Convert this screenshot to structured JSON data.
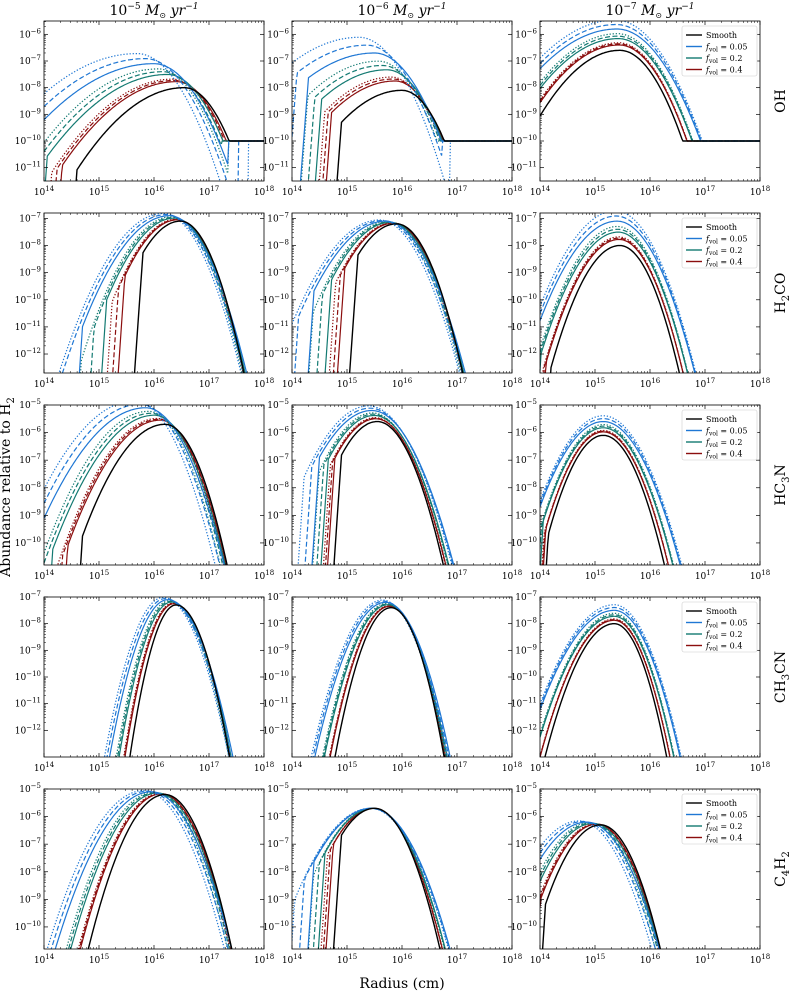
{
  "figure": {
    "ylabel": "Abundance relative to H",
    "ylabel_sub": "2",
    "xlabel": "Radius (cm)"
  },
  "columns": [
    {
      "exp": "−5",
      "suffix": "M",
      "unit": "yr",
      "unit_exp": "−1"
    },
    {
      "exp": "−6",
      "suffix": "M",
      "unit": "yr",
      "unit_exp": "−1"
    },
    {
      "exp": "−7",
      "suffix": "M",
      "unit": "yr",
      "unit_exp": "−1"
    }
  ],
  "rows": [
    {
      "species": "OH",
      "parts": [
        {
          "t": "OH",
          "sub": false
        }
      ]
    },
    {
      "species": "H2CO",
      "parts": [
        {
          "t": "H",
          "sub": false
        },
        {
          "t": "2",
          "sub": true
        },
        {
          "t": "CO",
          "sub": false
        }
      ]
    },
    {
      "species": "HC3N",
      "parts": [
        {
          "t": "HC",
          "sub": false
        },
        {
          "t": "3",
          "sub": true
        },
        {
          "t": "N",
          "sub": false
        }
      ]
    },
    {
      "species": "CH3CN",
      "parts": [
        {
          "t": "CH",
          "sub": false
        },
        {
          "t": "3",
          "sub": true
        },
        {
          "t": "CN",
          "sub": false
        }
      ]
    },
    {
      "species": "C4H2",
      "parts": [
        {
          "t": "C",
          "sub": false
        },
        {
          "t": "4",
          "sub": true
        },
        {
          "t": "H",
          "sub": false
        },
        {
          "t": "2",
          "sub": true
        }
      ]
    }
  ],
  "legend": {
    "entries": [
      {
        "label": "Smooth",
        "f": "",
        "color": "#000000"
      },
      {
        "label": "f",
        "f": "vol",
        "eq": " = 0.05",
        "color": "#1f77d4"
      },
      {
        "label": "f",
        "f": "vol",
        "eq": " = 0.2",
        "color": "#137a72"
      },
      {
        "label": "f",
        "f": "vol",
        "eq": " = 0.4",
        "color": "#8b0e0e"
      }
    ]
  },
  "colors": {
    "smooth": "#000000",
    "f005": "#1f77d4",
    "f02": "#137a72",
    "f04": "#8b0e0e"
  },
  "chart_data": {
    "type": "line",
    "xscale": "log",
    "yscale": "log",
    "xlim_exp": [
      14,
      18
    ],
    "x_tick_exponents": [
      "14",
      "15",
      "16",
      "17",
      "18"
    ],
    "panels": [
      {
        "row": "OH",
        "col": "−5",
        "ylim_exp": [
          -11.5,
          -5.5
        ],
        "y_ticks": [
          "−11",
          "−10",
          "−9",
          "−8",
          "−7",
          "−6"
        ],
        "smooth": {
          "lr": 14.6,
          "rise": 0.9,
          "pr": 16.55,
          "pv": -8.0,
          "fall": 3.0,
          "fr": 16.8,
          "tail": -10.0
        },
        "spread": 0.9,
        "peakshift": 0.55,
        "peakboost": 0.9
      },
      {
        "row": "OH",
        "col": "−6",
        "ylim_exp": [
          -11.5,
          -5.5
        ],
        "y_ticks": [
          "−11",
          "−10",
          "−9",
          "−8",
          "−7",
          "−6"
        ],
        "smooth": {
          "lr": 14.9,
          "rise": 1.1,
          "pr": 16.0,
          "pv": -8.1,
          "fall": 3.2,
          "fr": 16.25,
          "tail": -10.0
        },
        "spread": 0.6,
        "peakshift": 0.5,
        "peakboost": 1.4
      },
      {
        "row": "OH",
        "col": "−7",
        "ylim_exp": [
          -11.5,
          -5.5
        ],
        "y_ticks": [
          "−11",
          "−10",
          "−9",
          "−8",
          "−7",
          "−6"
        ],
        "smooth": {
          "lr": 14.0,
          "rise": 1.3,
          "pr": 15.45,
          "pv": -6.6,
          "fall": 2.6,
          "fr": 15.7,
          "tail": -10.0
        },
        "spread": 0.15,
        "peakshift": 0.05,
        "peakboost": 0.8
      },
      {
        "row": "H2CO",
        "col": "−5",
        "ylim_exp": [
          -12.7,
          -6.8
        ],
        "y_ticks": [
          "−12",
          "−11",
          "−10",
          "−9",
          "−8",
          "−7"
        ],
        "smooth": {
          "lr": 15.8,
          "rise": 2.8,
          "pr": 16.48,
          "pv": -7.1,
          "fall": 4.2,
          "fr": 17.1,
          "tail": -14.0
        },
        "spread": 1.1,
        "peakshift": 0.2,
        "peakboost": 0.2
      },
      {
        "row": "H2CO",
        "col": "−6",
        "ylim_exp": [
          -12.7,
          -6.8
        ],
        "y_ticks": [
          "−12",
          "−11",
          "−10",
          "−9",
          "−8",
          "−7"
        ],
        "smooth": {
          "lr": 15.2,
          "rise": 2.6,
          "pr": 15.9,
          "pv": -7.2,
          "fall": 3.8,
          "fr": 16.6,
          "tail": -14.0
        },
        "spread": 0.8,
        "peakshift": 0.2,
        "peakboost": 0.1
      },
      {
        "row": "H2CO",
        "col": "−7",
        "ylim_exp": [
          -12.7,
          -6.8
        ],
        "y_ticks": [
          "−12",
          "−11",
          "−10",
          "−9",
          "−8",
          "−7"
        ],
        "smooth": {
          "lr": 14.2,
          "rise": 3.2,
          "pr": 15.45,
          "pv": -8.0,
          "fall": 4.0,
          "fr": 16.0,
          "tail": -14.0
        },
        "spread": 0.3,
        "peakshift": 0.05,
        "peakboost": 0.9
      },
      {
        "row": "HC3N",
        "col": "−5",
        "ylim_exp": [
          -10.8,
          -5.0
        ],
        "y_ticks": [
          "−10",
          "−9",
          "−8",
          "−7",
          "−6",
          "−5"
        ],
        "smooth": {
          "lr": 14.7,
          "rise": 2.0,
          "pr": 16.2,
          "pv": -5.7,
          "fall": 4.0,
          "fr": 17.2,
          "tail": -13.0
        },
        "spread": 0.9,
        "peakshift": 0.35,
        "peakboost": 0.6
      },
      {
        "row": "HC3N",
        "col": "−6",
        "ylim_exp": [
          -10.8,
          -5.0
        ],
        "y_ticks": [
          "−10",
          "−9",
          "−8",
          "−7",
          "−6",
          "−5"
        ],
        "smooth": {
          "lr": 14.9,
          "rise": 3.2,
          "pr": 15.55,
          "pv": -5.6,
          "fall": 3.6,
          "fr": 16.7,
          "tail": -13.0
        },
        "spread": 0.4,
        "peakshift": 0.1,
        "peakboost": 0.4
      },
      {
        "row": "HC3N",
        "col": "−7",
        "ylim_exp": [
          -10.8,
          -5.0
        ],
        "y_ticks": [
          "−10",
          "−9",
          "−8",
          "−7",
          "−6",
          "−5"
        ],
        "smooth": {
          "lr": 14.15,
          "rise": 4.0,
          "pr": 15.15,
          "pv": -6.1,
          "fall": 3.8,
          "fr": 16.1,
          "tail": -13.0
        },
        "spread": 0.15,
        "peakshift": 0.0,
        "peakboost": 0.5
      },
      {
        "row": "CH3CN",
        "col": "−5",
        "ylim_exp": [
          -13.0,
          -7.0
        ],
        "y_ticks": [
          "−12",
          "−11",
          "−10",
          "−9",
          "−8",
          "−7"
        ],
        "smooth": {
          "lr": 14.0,
          "rise": 9.0,
          "pr": 16.4,
          "pv": -7.3,
          "fall": 6.0,
          "fr": 16.9,
          "tail": -14.0
        },
        "spread": 0.5,
        "peakshift": 0.15,
        "peakboost": 0.2
      },
      {
        "row": "CH3CN",
        "col": "−6",
        "ylim_exp": [
          -13.0,
          -7.0
        ],
        "y_ticks": [
          "−12",
          "−11",
          "−10",
          "−9",
          "−8",
          "−7"
        ],
        "smooth": {
          "lr": 14.0,
          "rise": 6.0,
          "pr": 15.8,
          "pv": -7.4,
          "fall": 6.0,
          "fr": 16.3,
          "tail": -14.0
        },
        "spread": 0.35,
        "peakshift": 0.1,
        "peakboost": 0.2
      },
      {
        "row": "CH3CN",
        "col": "−7",
        "ylim_exp": [
          -13.0,
          -7.0
        ],
        "y_ticks": [
          "−12",
          "−11",
          "−10",
          "−9",
          "−8",
          "−7"
        ],
        "smooth": {
          "lr": 14.05,
          "rise": 3.5,
          "pr": 15.35,
          "pv": -8.0,
          "fall": 5.5,
          "fr": 16.0,
          "tail": -14.0
        },
        "spread": 0.2,
        "peakshift": 0.0,
        "peakboost": 0.5
      },
      {
        "row": "C4H2",
        "col": "−5",
        "ylim_exp": [
          -10.8,
          -5.0
        ],
        "y_ticks": [
          "−10",
          "−9",
          "−8",
          "−7",
          "−6",
          "−5"
        ],
        "smooth": {
          "lr": 14.5,
          "rise": 3.2,
          "pr": 16.2,
          "pv": -5.2,
          "fall": 3.8,
          "fr": 17.2,
          "tail": -13.0
        },
        "spread": 0.8,
        "peakshift": 0.25,
        "peakboost": 0.1
      },
      {
        "row": "C4H2",
        "col": "−6",
        "ylim_exp": [
          -10.8,
          -5.0
        ],
        "y_ticks": [
          "−10",
          "−9",
          "−8",
          "−7",
          "−6",
          "−5"
        ],
        "smooth": {
          "lr": 14.9,
          "rise": 3.0,
          "pr": 15.5,
          "pv": -5.7,
          "fall": 3.6,
          "fr": 16.6,
          "tail": -13.0
        },
        "spread": 0.5,
        "peakshift": 0.05,
        "peakboost": 0.0
      },
      {
        "row": "C4H2",
        "col": "−7",
        "ylim_exp": [
          -10.8,
          -5.0
        ],
        "y_ticks": [
          "−10",
          "−9",
          "−8",
          "−7",
          "−6",
          "−5"
        ],
        "smooth": {
          "lr": 14.1,
          "rise": 3.2,
          "pr": 15.1,
          "pv": -6.3,
          "fall": 3.8,
          "fr": 16.2,
          "tail": -13.0
        },
        "spread": 0.3,
        "peakshift": 0.25,
        "peakboost": 0.1
      }
    ],
    "series_names": [
      "Smooth",
      "f_vol = 0.05",
      "f_vol = 0.2",
      "f_vol = 0.4"
    ]
  }
}
